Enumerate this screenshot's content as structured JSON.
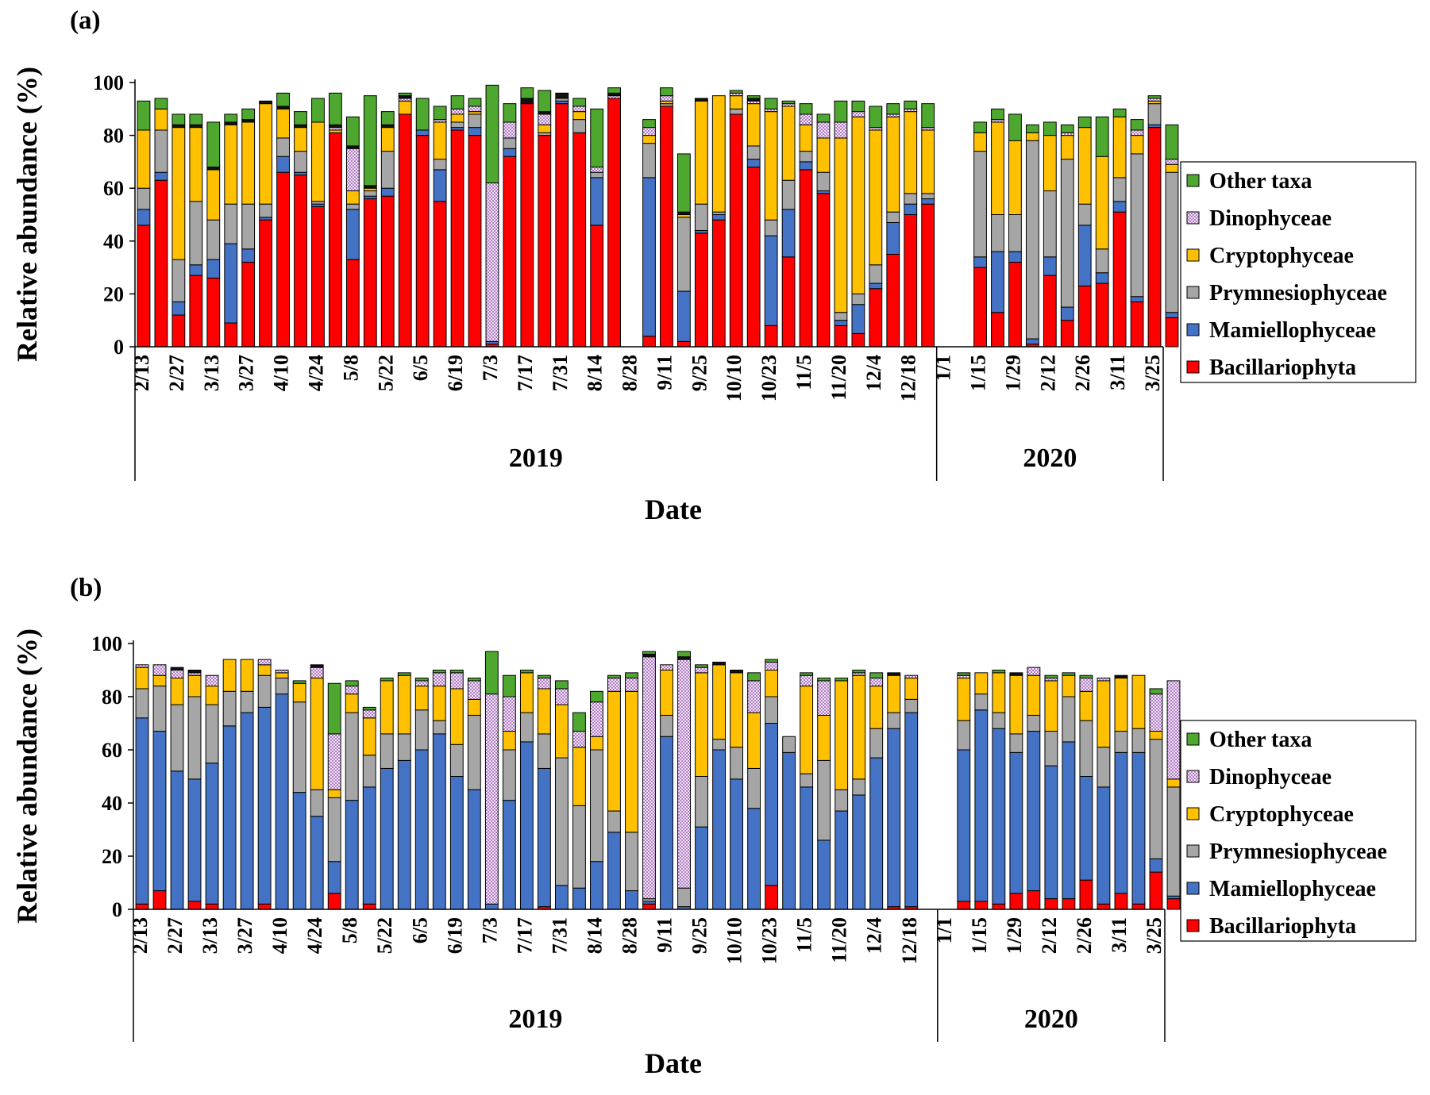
{
  "colors": {
    "Bacillariophyta": "#ff0000",
    "Mamiellophyceae": "#4472c4",
    "Prymnesiophyceae": "#a6a6a6",
    "Cryptophyceae": "#ffc000",
    "Dinophyceae": "#e9c7f0",
    "Other taxa": "#4ea72e",
    "Unlabeled": "#111111"
  },
  "legend_items": [
    "Other taxa",
    "Dinophyceae",
    "Cryptophyceae",
    "Prymnesiophyceae",
    "Mamiellophyceae",
    "Bacillariophyta"
  ],
  "chart_data": [
    {
      "type": "bar",
      "stacked": true,
      "panel": "(a)",
      "ylabel": "Relative abundance (%)",
      "xlabel": "Date",
      "ylim": [
        0,
        100
      ],
      "yticks": [
        0,
        20,
        40,
        60,
        80,
        100
      ],
      "tick_labels": [
        "2/13",
        "2/27",
        "3/13",
        "3/27",
        "4/10",
        "4/24",
        "5/8",
        "5/22",
        "6/5",
        "6/19",
        "7/3",
        "7/17",
        "7/31",
        "8/14",
        "8/28",
        "9/11",
        "9/25",
        "10/10",
        "10/23",
        "11/5",
        "11/20",
        "12/4",
        "12/18",
        "1/1",
        "1/15",
        "1/29",
        "2/12",
        "2/26",
        "3/11",
        "3/25"
      ],
      "years": [
        {
          "label": "2019",
          "start": 0,
          "end": 46
        },
        {
          "label": "2020",
          "start": 46,
          "end": 59
        }
      ],
      "series_order": [
        "Bacillariophyta",
        "Mamiellophyceae",
        "Prymnesiophyceae",
        "Cryptophyceae",
        "Dinophyceae",
        "Unlabeled",
        "Other taxa"
      ],
      "bars": [
        [
          46,
          6,
          8,
          22,
          0,
          0,
          11
        ],
        [
          63,
          3,
          16,
          8,
          0,
          0,
          4
        ],
        [
          12,
          5,
          16,
          50,
          0,
          1,
          4
        ],
        [
          27,
          4,
          24,
          28,
          0,
          1,
          4
        ],
        [
          26,
          7,
          15,
          19,
          0,
          1,
          17
        ],
        [
          9,
          30,
          15,
          30,
          0,
          1,
          3
        ],
        [
          32,
          5,
          17,
          31,
          0,
          1,
          4
        ],
        [
          48,
          1,
          5,
          38,
          0,
          1,
          0
        ],
        [
          66,
          6,
          7,
          11,
          0,
          1,
          5
        ],
        [
          65,
          1,
          8,
          9,
          0,
          1,
          5
        ],
        [
          53,
          1,
          1,
          30,
          0,
          0,
          9
        ],
        [
          81,
          0,
          0,
          1,
          1,
          1,
          12
        ],
        [
          33,
          19,
          2,
          5,
          16,
          1,
          11
        ],
        [
          56,
          1,
          2,
          1,
          0,
          1,
          34
        ],
        [
          57,
          3,
          14,
          9,
          0,
          1,
          5
        ],
        [
          88,
          0,
          0,
          5,
          1,
          1,
          1
        ],
        [
          80,
          2,
          0,
          0,
          0,
          0,
          12
        ],
        [
          55,
          12,
          4,
          14,
          1,
          0,
          5
        ],
        [
          82,
          1,
          2,
          3,
          2,
          0,
          5
        ],
        [
          80,
          3,
          5,
          1,
          2,
          0,
          3
        ],
        [
          1,
          1,
          0,
          0,
          60,
          0,
          37
        ],
        [
          72,
          3,
          4,
          0,
          6,
          0,
          7
        ],
        [
          92,
          0,
          0,
          0,
          0,
          2,
          4
        ],
        [
          80,
          0,
          1,
          3,
          4,
          1,
          8
        ],
        [
          92,
          1,
          1,
          0,
          0,
          2,
          0
        ],
        [
          81,
          0,
          5,
          3,
          2,
          0,
          3
        ],
        [
          46,
          18,
          2,
          0,
          2,
          0,
          22
        ],
        [
          94,
          0,
          0,
          0,
          1,
          1,
          2
        ],
        [
          4,
          60,
          13,
          3,
          3,
          0,
          3
        ],
        [
          91,
          0,
          1,
          1,
          2,
          0,
          3
        ],
        [
          2,
          19,
          28,
          1,
          0,
          1,
          22
        ],
        [
          43,
          1,
          10,
          39,
          0,
          1,
          0
        ],
        [
          48,
          2,
          1,
          44,
          0,
          0,
          0
        ],
        [
          88,
          0,
          2,
          5,
          1,
          0,
          1
        ],
        [
          68,
          3,
          5,
          16,
          1,
          1,
          1
        ],
        [
          8,
          34,
          6,
          41,
          1,
          0,
          4
        ],
        [
          34,
          18,
          11,
          28,
          1,
          0,
          1
        ],
        [
          67,
          3,
          4,
          10,
          4,
          0,
          4
        ],
        [
          58,
          1,
          7,
          13,
          6,
          0,
          3
        ],
        [
          8,
          2,
          3,
          66,
          6,
          0,
          8
        ],
        [
          5,
          11,
          4,
          67,
          2,
          0,
          4
        ],
        [
          22,
          2,
          7,
          51,
          1,
          0,
          8
        ],
        [
          35,
          12,
          4,
          36,
          1,
          0,
          4
        ],
        [
          50,
          4,
          4,
          31,
          1,
          0,
          3
        ],
        [
          54,
          2,
          2,
          24,
          1,
          0,
          9
        ],
        [
          30,
          4,
          40,
          7,
          0,
          0,
          4
        ],
        [
          13,
          23,
          14,
          35,
          1,
          0,
          4
        ],
        [
          32,
          4,
          14,
          28,
          0,
          0,
          10
        ],
        [
          1,
          2,
          75,
          3,
          0,
          0,
          3
        ],
        [
          27,
          7,
          25,
          21,
          0,
          0,
          5
        ],
        [
          10,
          5,
          56,
          9,
          1,
          0,
          3
        ],
        [
          23,
          23,
          8,
          29,
          0,
          0,
          4
        ],
        [
          24,
          4,
          9,
          35,
          0,
          0,
          15
        ],
        [
          51,
          4,
          9,
          23,
          0,
          0,
          3
        ],
        [
          17,
          2,
          54,
          7,
          2,
          0,
          4
        ],
        [
          83,
          1,
          8,
          1,
          1,
          0,
          1
        ],
        [
          11,
          2,
          53,
          3,
          2,
          0,
          13
        ]
      ],
      "bar_slots": [
        0,
        1,
        2,
        3,
        4,
        5,
        6,
        7,
        8,
        9,
        10,
        11,
        12,
        13,
        14,
        15,
        16,
        17,
        18,
        19,
        20,
        21,
        22,
        23,
        24,
        25,
        26,
        27,
        28,
        29,
        30,
        31,
        32,
        33,
        34,
        35,
        36,
        37,
        38,
        39,
        40,
        41,
        42,
        43,
        44,
        45,
        46,
        47,
        48,
        49,
        50,
        51,
        52,
        53,
        54,
        55,
        56
      ]
    },
    {
      "type": "bar",
      "stacked": true,
      "panel": "(b)",
      "ylabel": "Relative abundance (%)",
      "xlabel": "Date",
      "ylim": [
        0,
        100
      ],
      "yticks": [
        0,
        20,
        40,
        60,
        80,
        100
      ],
      "tick_labels": [
        "2/13",
        "2/27",
        "3/13",
        "3/27",
        "4/10",
        "4/24",
        "5/8",
        "5/22",
        "6/5",
        "6/19",
        "7/3",
        "7/17",
        "7/31",
        "8/14",
        "8/28",
        "9/11",
        "9/25",
        "10/10",
        "10/23",
        "11/5",
        "11/20",
        "12/4",
        "12/18",
        "1/1",
        "1/15",
        "1/29",
        "2/12",
        "2/26",
        "3/11",
        "3/25"
      ],
      "years": [
        {
          "label": "2019",
          "start": 0,
          "end": 46
        },
        {
          "label": "2020",
          "start": 46,
          "end": 59
        }
      ],
      "series_order": [
        "Bacillariophyta",
        "Mamiellophyceae",
        "Prymnesiophyceae",
        "Cryptophyceae",
        "Dinophyceae",
        "Unlabeled",
        "Other taxa"
      ],
      "bars": [
        [
          2,
          70,
          11,
          8,
          1,
          0,
          0
        ],
        [
          7,
          60,
          17,
          4,
          4,
          0,
          0
        ],
        [
          0,
          52,
          25,
          10,
          3,
          1,
          0
        ],
        [
          3,
          46,
          31,
          8,
          1,
          1,
          0
        ],
        [
          2,
          53,
          22,
          7,
          4,
          0,
          0
        ],
        [
          0,
          69,
          13,
          12,
          0,
          0,
          0
        ],
        [
          0,
          74,
          8,
          12,
          0,
          0,
          0
        ],
        [
          2,
          74,
          12,
          4,
          2,
          0,
          0
        ],
        [
          0,
          81,
          6,
          2,
          1,
          0,
          0
        ],
        [
          0,
          44,
          34,
          7,
          0,
          0,
          1
        ],
        [
          0,
          35,
          10,
          42,
          4,
          1,
          0
        ],
        [
          6,
          12,
          24,
          3,
          21,
          0,
          19
        ],
        [
          0,
          41,
          33,
          7,
          3,
          0,
          2
        ],
        [
          2,
          44,
          12,
          14,
          3,
          0,
          1
        ],
        [
          0,
          53,
          13,
          20,
          0,
          0,
          1
        ],
        [
          0,
          56,
          10,
          22,
          0,
          0,
          1
        ],
        [
          0,
          60,
          15,
          9,
          2,
          0,
          1
        ],
        [
          0,
          66,
          5,
          13,
          5,
          0,
          1
        ],
        [
          0,
          50,
          12,
          21,
          6,
          0,
          1
        ],
        [
          0,
          45,
          28,
          6,
          7,
          0,
          1
        ],
        [
          0,
          2,
          0,
          0,
          79,
          0,
          16
        ],
        [
          0,
          41,
          19,
          7,
          13,
          0,
          8
        ],
        [
          0,
          63,
          11,
          15,
          0,
          0,
          1
        ],
        [
          1,
          52,
          13,
          17,
          4,
          0,
          1
        ],
        [
          0,
          9,
          48,
          20,
          6,
          0,
          3
        ],
        [
          0,
          8,
          31,
          22,
          6,
          0,
          7
        ],
        [
          0,
          18,
          42,
          5,
          13,
          0,
          4
        ],
        [
          0,
          29,
          8,
          45,
          5,
          0,
          1
        ],
        [
          0,
          7,
          22,
          53,
          5,
          0,
          2
        ],
        [
          2,
          1,
          1,
          0,
          91,
          1,
          1
        ],
        [
          0,
          65,
          8,
          17,
          2,
          0,
          0
        ],
        [
          0,
          1,
          7,
          0,
          86,
          1,
          2
        ],
        [
          0,
          31,
          19,
          39,
          2,
          0,
          1
        ],
        [
          0,
          60,
          4,
          28,
          0,
          1,
          0
        ],
        [
          0,
          49,
          12,
          28,
          0,
          1,
          0
        ],
        [
          0,
          38,
          15,
          21,
          12,
          0,
          3
        ],
        [
          9,
          61,
          10,
          10,
          3,
          0,
          1
        ],
        [
          0,
          59,
          6,
          0,
          0,
          0,
          0
        ],
        [
          0,
          46,
          5,
          33,
          4,
          0,
          1
        ],
        [
          0,
          26,
          30,
          17,
          13,
          0,
          1
        ],
        [
          0,
          37,
          8,
          41,
          0,
          0,
          1
        ],
        [
          0,
          43,
          6,
          39,
          1,
          0,
          1
        ],
        [
          0,
          57,
          11,
          16,
          3,
          0,
          2
        ],
        [
          1,
          67,
          6,
          14,
          0,
          1,
          0
        ],
        [
          1,
          73,
          5,
          8,
          1,
          0,
          0
        ],
        [
          3,
          57,
          11,
          16,
          1,
          0,
          1
        ],
        [
          3,
          72,
          6,
          8,
          0,
          0,
          0
        ],
        [
          2,
          66,
          6,
          15,
          0,
          0,
          1
        ],
        [
          6,
          53,
          7,
          22,
          0,
          1,
          0
        ],
        [
          7,
          60,
          6,
          15,
          3,
          0,
          0
        ],
        [
          4,
          50,
          13,
          19,
          1,
          0,
          1
        ],
        [
          4,
          59,
          17,
          8,
          0,
          0,
          1
        ],
        [
          11,
          39,
          21,
          11,
          5,
          0,
          1
        ],
        [
          2,
          44,
          15,
          25,
          1,
          0,
          0
        ],
        [
          6,
          53,
          8,
          20,
          0,
          1,
          0
        ],
        [
          2,
          57,
          9,
          20,
          0,
          0,
          0
        ],
        [
          14,
          5,
          45,
          3,
          14,
          0,
          2
        ],
        [
          4,
          1,
          41,
          3,
          37,
          0,
          0
        ]
      ],
      "bar_slots": [
        0,
        1,
        2,
        3,
        4,
        5,
        6,
        7,
        8,
        9,
        10,
        11,
        12,
        13,
        14,
        15,
        16,
        17,
        18,
        19,
        20,
        21,
        22,
        23,
        24,
        25,
        26,
        27,
        28,
        29,
        30,
        31,
        32,
        33,
        34,
        35,
        36,
        37,
        38,
        39,
        40,
        41,
        42,
        43,
        44,
        45,
        46,
        47,
        48,
        49,
        50,
        51,
        52,
        53,
        54,
        55,
        56,
        57
      ]
    }
  ]
}
